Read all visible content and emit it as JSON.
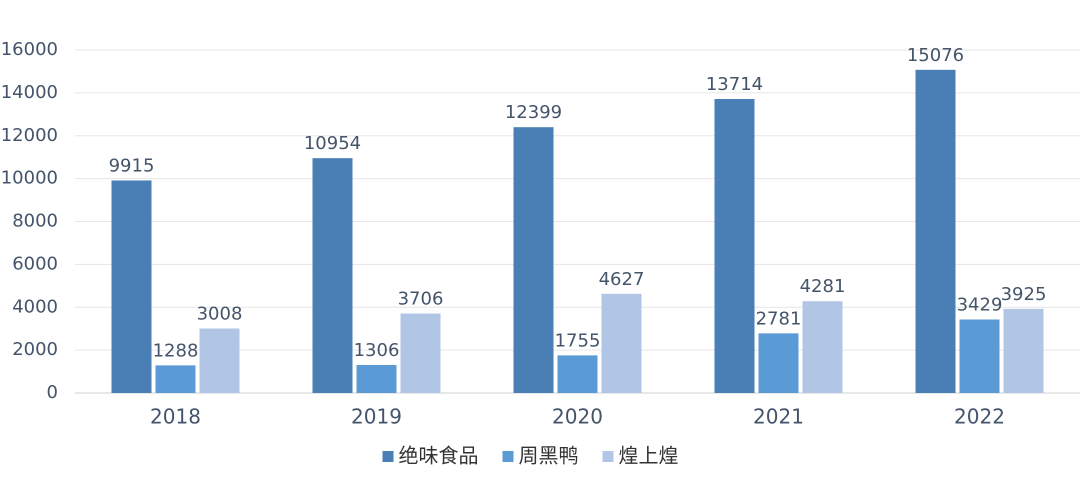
{
  "chart_data": {
    "type": "bar",
    "categories": [
      "2018",
      "2019",
      "2020",
      "2021",
      "2022"
    ],
    "series": [
      {
        "name": "绝味食品",
        "color": "#4a7fb5",
        "values": [
          9915,
          10954,
          12399,
          13714,
          15076
        ]
      },
      {
        "name": "周黑鸭",
        "color": "#5b9bd5",
        "values": [
          1288,
          1306,
          1755,
          2781,
          3429
        ]
      },
      {
        "name": "煌上煌",
        "color": "#b0c6e4",
        "values": [
          3008,
          3706,
          4627,
          4281,
          3925
        ]
      }
    ],
    "ylim": [
      0,
      16000
    ],
    "yticks": [
      0,
      2000,
      4000,
      6000,
      8000,
      10000,
      12000,
      14000,
      16000
    ],
    "grid": true
  }
}
